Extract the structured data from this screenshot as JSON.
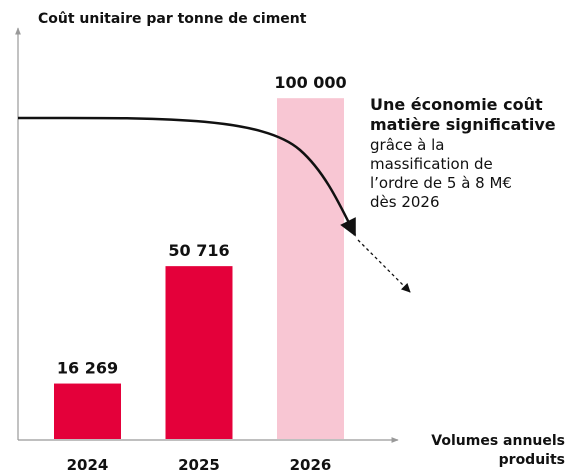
{
  "chart_data": {
    "type": "bar",
    "y_label": "Coût unitaire par tonne de ciment",
    "x_label": [
      "Volumes annuels",
      "produits"
    ],
    "categories": [
      "2024",
      "2025",
      "2026"
    ],
    "values": [
      16269,
      50716,
      100000
    ],
    "value_labels": [
      "16 269",
      "50 716",
      "100 000"
    ],
    "colors": [
      "#e4003a",
      "#e4003a",
      "#f8c6d3"
    ],
    "ylim": [
      0,
      120000
    ],
    "annotation": {
      "bold": [
        "Une économie coût",
        "matière significative"
      ],
      "text": [
        "grâce à la",
        "massification de",
        "l’ordre de 5 à 8 M€",
        "dès 2026"
      ]
    }
  }
}
